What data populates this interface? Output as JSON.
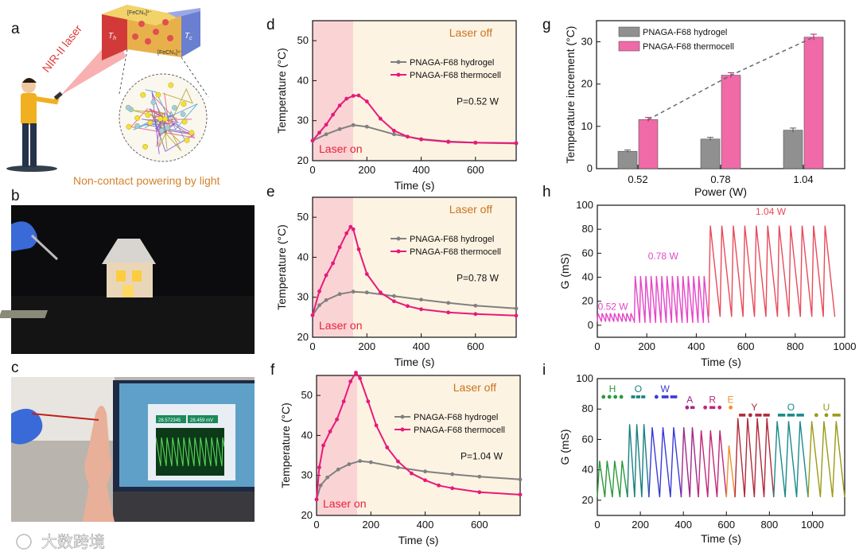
{
  "panel_labels": {
    "a": "a",
    "b": "b",
    "c": "c",
    "d": "d",
    "e": "e",
    "f": "f",
    "g": "g",
    "h": "h",
    "i": "i"
  },
  "panel_a": {
    "laser_label": "NIR-II laser",
    "caption": "Non-contact powering by light",
    "th_label": "T",
    "th_sub": "h",
    "tc_label": "T",
    "tc_sub": "c",
    "ion_top": "[FeCN₆]³⁻",
    "ion_bottom": "[FeCN₆]⁴⁻",
    "colors": {
      "caption": "#d4822a",
      "laser": "#e23a3a"
    }
  },
  "panel_c": {
    "readout_left": "28.572345",
    "readout_right": "28.459 mV"
  },
  "temp_panels": [
    {
      "key": "d",
      "power": "P=0.52 W",
      "laser_on": "Laser on",
      "laser_off": "Laser off",
      "legend": [
        "PNAGA-F68 hydrogel",
        "PNAGA-F68 thermocell"
      ]
    },
    {
      "key": "e",
      "power": "P=0.78 W",
      "laser_on": "Laser on",
      "laser_off": "Laser off",
      "legend": [
        "PNAGA-F68 hydrogel",
        "PNAGA-F68 thermocell"
      ]
    },
    {
      "key": "f",
      "power": "P=1.04 W",
      "laser_on": "Laser on",
      "laser_off": "Laser off",
      "legend": [
        "PNAGA-F68 hydrogel",
        "PNAGA-F68 thermocell"
      ]
    }
  ],
  "chart_data": [
    {
      "id": "d",
      "type": "line",
      "xlabel": "Time (s)",
      "ylabel": "Temperature (°C)",
      "xlim": [
        0,
        750
      ],
      "ylim": [
        20,
        55
      ],
      "xticks": [
        0,
        200,
        400,
        600
      ],
      "yticks": [
        20,
        30,
        40,
        50
      ],
      "shaded_on": [
        0,
        150
      ],
      "series": [
        {
          "name": "PNAGA-F68 hydrogel",
          "color": "#808080",
          "x": [
            0,
            50,
            100,
            150,
            200,
            300,
            400,
            500,
            600,
            750
          ],
          "y": [
            25.0,
            26.6,
            27.9,
            28.9,
            28.5,
            26.6,
            25.4,
            24.8,
            24.5,
            24.3
          ]
        },
        {
          "name": "PNAGA-F68 thermocell",
          "color": "#e8197a",
          "x": [
            0,
            25,
            50,
            75,
            100,
            125,
            150,
            170,
            200,
            250,
            300,
            350,
            400,
            500,
            600,
            750
          ],
          "y": [
            25.0,
            27.0,
            29.0,
            31.5,
            33.8,
            35.5,
            36.2,
            36.3,
            34.8,
            30.5,
            27.5,
            26.0,
            25.3,
            24.7,
            24.5,
            24.4
          ]
        }
      ]
    },
    {
      "id": "e",
      "type": "line",
      "xlabel": "Time (s)",
      "ylabel": "Temperature (°C)",
      "xlim": [
        0,
        750
      ],
      "ylim": [
        20,
        55
      ],
      "xticks": [
        0,
        200,
        400,
        600
      ],
      "yticks": [
        20,
        30,
        40,
        50
      ],
      "shaded_on": [
        0,
        150
      ],
      "series": [
        {
          "name": "PNAGA-F68 hydrogel",
          "color": "#808080",
          "x": [
            0,
            25,
            50,
            100,
            150,
            200,
            300,
            400,
            500,
            600,
            750
          ],
          "y": [
            25.5,
            28.0,
            29.3,
            30.8,
            31.4,
            31.2,
            30.3,
            29.4,
            28.6,
            27.9,
            27.2
          ]
        },
        {
          "name": "PNAGA-F68 thermocell",
          "color": "#e8197a",
          "x": [
            0,
            25,
            50,
            75,
            100,
            125,
            140,
            150,
            170,
            200,
            250,
            300,
            350,
            400,
            500,
            600,
            750
          ],
          "y": [
            25.5,
            31.5,
            35.5,
            38.5,
            42.5,
            46.0,
            47.6,
            47.0,
            42.0,
            35.8,
            31.2,
            29.0,
            27.8,
            27.0,
            26.2,
            25.8,
            25.4
          ]
        }
      ]
    },
    {
      "id": "f",
      "type": "line",
      "xlabel": "Time (s)",
      "ylabel": "Temperature (°C)",
      "xlim": [
        0,
        750
      ],
      "ylim": [
        20,
        55
      ],
      "xticks": [
        0,
        200,
        400,
        600
      ],
      "yticks": [
        20,
        30,
        40,
        50
      ],
      "shaded_on": [
        0,
        150
      ],
      "series": [
        {
          "name": "PNAGA-F68 hydrogel",
          "color": "#808080",
          "x": [
            0,
            15,
            40,
            80,
            120,
            160,
            200,
            300,
            400,
            500,
            600,
            750
          ],
          "y": [
            24.0,
            27.5,
            29.5,
            31.5,
            32.8,
            33.6,
            33.3,
            32.0,
            31.0,
            30.3,
            29.7,
            29.0
          ]
        },
        {
          "name": "PNAGA-F68 thermocell",
          "color": "#e8197a",
          "x": [
            0,
            10,
            25,
            50,
            75,
            100,
            125,
            145,
            160,
            190,
            220,
            260,
            300,
            350,
            400,
            450,
            500,
            600,
            750
          ],
          "y": [
            24.0,
            32.0,
            37.5,
            41.0,
            44.0,
            48.5,
            53.5,
            55.7,
            54.3,
            48.5,
            42.5,
            37.0,
            33.5,
            30.5,
            28.8,
            27.5,
            26.8,
            25.8,
            25.2
          ]
        }
      ]
    },
    {
      "id": "g",
      "type": "bar",
      "xlabel": "Power (W)",
      "ylabel": "Temperature increment (°C)",
      "categories": [
        "0.52",
        "0.78",
        "1.04"
      ],
      "ylim": [
        0,
        35
      ],
      "yticks": [
        0,
        10,
        20,
        30
      ],
      "legend": "top-left",
      "trend_line": "dashed gray through thermocell tops",
      "series": [
        {
          "name": "PNAGA-F68 hydrogel",
          "color": "#909090",
          "values": [
            4.1,
            7.0,
            9.1
          ],
          "errors": [
            0.3,
            0.4,
            0.5
          ]
        },
        {
          "name": "PNAGA-F68 thermocell",
          "color": "#f06aa8",
          "values": [
            11.6,
            22.1,
            31.1
          ],
          "errors": [
            0.5,
            0.6,
            0.7
          ]
        }
      ]
    },
    {
      "id": "h",
      "type": "line",
      "xlabel": "Time (s)",
      "ylabel": "G (mS)",
      "xlim": [
        0,
        1000
      ],
      "ylim": [
        -10,
        100
      ],
      "xticks": [
        0,
        200,
        400,
        600,
        800,
        1000
      ],
      "yticks": [
        0,
        20,
        40,
        60,
        80,
        100
      ],
      "segments": [
        {
          "label": "0.52 W",
          "color": "#e545c8",
          "t": [
            0,
            150
          ],
          "n_cycles": 9,
          "low": 3,
          "high": 10
        },
        {
          "label": "0.78 W",
          "color": "#e545c8",
          "t": [
            150,
            450
          ],
          "n_cycles": 14,
          "low": 2,
          "high": 41
        },
        {
          "label": "1.04 W",
          "color": "#e84a5a",
          "t": [
            450,
            960
          ],
          "n_cycles": 11,
          "low": 7,
          "high": 83
        }
      ]
    },
    {
      "id": "i",
      "type": "line",
      "xlabel": "Time (s)",
      "ylabel": "G (mS)",
      "xlim": [
        0,
        1150
      ],
      "ylim": [
        10,
        100
      ],
      "xticks": [
        0,
        200,
        400,
        600,
        800,
        1000
      ],
      "yticks": [
        20,
        40,
        60,
        80,
        100
      ],
      "morse": [
        {
          "letter": "H",
          "code": "....",
          "color": "#2a9a3a",
          "t": [
            0,
            140
          ],
          "cycles": 4,
          "low": 22,
          "high": 46
        },
        {
          "letter": "O",
          "code": "---",
          "color": "#1a7f7f",
          "t": [
            140,
            240
          ],
          "cycles": 3,
          "low": 22,
          "high": 70
        },
        {
          "letter": "W",
          "code": ".--",
          "color": "#3a3ad8",
          "t": [
            240,
            390
          ],
          "cycles": 3,
          "low": 22,
          "high": 68
        },
        {
          "letter": "A",
          "code": ".-",
          "color": "#a0288a",
          "t": [
            390,
            470
          ],
          "cycles": 2,
          "low": 22,
          "high": 68
        },
        {
          "letter": "R",
          "code": ".-.",
          "color": "#c02878",
          "t": [
            470,
            600
          ],
          "cycles": 3,
          "low": 22,
          "high": 66
        },
        {
          "letter": "E",
          "code": ".",
          "color": "#f09030",
          "t": [
            600,
            640
          ],
          "cycles": 1,
          "low": 22,
          "high": 56
        },
        {
          "letter": "Y",
          "code": "-.--",
          "color": "#b02a3a",
          "t": [
            640,
            820
          ],
          "cycles": 4,
          "low": 22,
          "high": 74
        },
        {
          "letter": "O",
          "code": "---",
          "color": "#1a8a8a",
          "t": [
            820,
            980
          ],
          "cycles": 3,
          "low": 22,
          "high": 72
        },
        {
          "letter": "U",
          "code": "..-",
          "color": "#9a9a18",
          "t": [
            980,
            1150
          ],
          "cycles": 3,
          "low": 22,
          "high": 72
        }
      ]
    }
  ],
  "watermark": "大数跨境"
}
